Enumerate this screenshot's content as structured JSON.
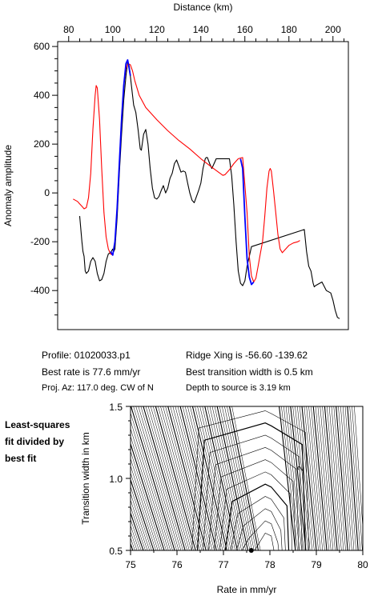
{
  "chart_data": [
    {
      "type": "line",
      "xlabel": "Distance (km)",
      "ylabel": "Anomaly amplitude",
      "xlim": [
        75,
        207
      ],
      "ylim": [
        -560,
        620
      ],
      "x_ticks": [
        80,
        100,
        120,
        140,
        160,
        180,
        200
      ],
      "y_ticks": [
        600,
        400,
        200,
        0,
        -200,
        -400
      ],
      "grid": false,
      "series": [
        {
          "color": "#000000",
          "points": [
            [
              85,
              -95
            ],
            [
              86,
              -200
            ],
            [
              86.5,
              -240
            ],
            [
              87,
              -260
            ],
            [
              87.5,
              -320
            ],
            [
              88,
              -330
            ],
            [
              89,
              -320
            ],
            [
              90,
              -280
            ],
            [
              91,
              -265
            ],
            [
              92,
              -280
            ],
            [
              93,
              -330
            ],
            [
              94,
              -360
            ],
            [
              95,
              -355
            ],
            [
              96,
              -330
            ],
            [
              97,
              -280
            ],
            [
              98,
              -250
            ],
            [
              99,
              -245
            ],
            [
              100,
              -230
            ],
            [
              100.5,
              -240
            ],
            [
              101,
              -230
            ],
            [
              102,
              -100
            ],
            [
              103,
              80
            ],
            [
              104,
              240
            ],
            [
              105,
              380
            ],
            [
              106,
              480
            ],
            [
              106.8,
              535
            ],
            [
              107.5,
              520
            ],
            [
              108.5,
              440
            ],
            [
              109.5,
              360
            ],
            [
              110.5,
              330
            ],
            [
              111.5,
              260
            ],
            [
              112.5,
              180
            ],
            [
              113,
              175
            ],
            [
              114,
              240
            ],
            [
              115,
              260
            ],
            [
              116,
              200
            ],
            [
              117,
              100
            ],
            [
              118,
              20
            ],
            [
              119,
              -20
            ],
            [
              120,
              -25
            ],
            [
              121,
              -15
            ],
            [
              122,
              10
            ],
            [
              123,
              30
            ],
            [
              124,
              0
            ],
            [
              125,
              20
            ],
            [
              126,
              60
            ],
            [
              127,
              80
            ],
            [
              128,
              120
            ],
            [
              129,
              135
            ],
            [
              130,
              110
            ],
            [
              131,
              85
            ],
            [
              132,
              90
            ],
            [
              133,
              85
            ],
            [
              134,
              40
            ],
            [
              135,
              0
            ],
            [
              136,
              -30
            ],
            [
              137,
              -40
            ],
            [
              138,
              -15
            ],
            [
              139,
              10
            ],
            [
              140,
              40
            ],
            [
              141,
              100
            ],
            [
              142,
              140
            ],
            [
              142.5,
              145
            ],
            [
              143,
              145
            ],
            [
              144,
              120
            ],
            [
              145,
              100
            ],
            [
              146,
              120
            ],
            [
              147,
              140
            ],
            [
              153,
              140
            ],
            [
              154,
              70
            ],
            [
              155,
              -50
            ],
            [
              156,
              -200
            ],
            [
              157,
              -320
            ],
            [
              158,
              -370
            ],
            [
              159,
              -380
            ],
            [
              160,
              -360
            ],
            [
              161,
              -300
            ],
            [
              162,
              -260
            ],
            [
              163,
              -220
            ],
            [
              187,
              -150
            ],
            [
              188,
              -240
            ],
            [
              189,
              -300
            ],
            [
              190,
              -320
            ],
            [
              191,
              -370
            ],
            [
              191.5,
              -385
            ],
            [
              192,
              -380
            ],
            [
              195,
              -365
            ],
            [
              197,
              -400
            ],
            [
              199,
              -410
            ],
            [
              200,
              -440
            ],
            [
              201,
              -480
            ],
            [
              202,
              -510
            ],
            [
              203,
              -515
            ]
          ]
        },
        {
          "color": "#ff0000",
          "points": [
            [
              82,
              -25
            ],
            [
              84,
              -35
            ],
            [
              85,
              -45
            ],
            [
              86,
              -55
            ],
            [
              87,
              -65
            ],
            [
              88,
              -60
            ],
            [
              89,
              -20
            ],
            [
              90,
              80
            ],
            [
              91,
              260
            ],
            [
              92,
              400
            ],
            [
              92.5,
              440
            ],
            [
              93,
              430
            ],
            [
              94,
              300
            ],
            [
              95,
              100
            ],
            [
              96,
              -80
            ],
            [
              97,
              -180
            ],
            [
              98,
              -230
            ],
            [
              99,
              -250
            ],
            [
              100,
              -255
            ],
            [
              101,
              -200
            ],
            [
              102,
              -60
            ],
            [
              103,
              120
            ],
            [
              104,
              310
            ],
            [
              105,
              440
            ],
            [
              106,
              510
            ],
            [
              107,
              530
            ],
            [
              108,
              525
            ],
            [
              109,
              500
            ],
            [
              110,
              460
            ],
            [
              112,
              400
            ],
            [
              115,
              350
            ],
            [
              120,
              300
            ],
            [
              125,
              255
            ],
            [
              130,
              215
            ],
            [
              135,
              180
            ],
            [
              140,
              140
            ],
            [
              145,
              105
            ],
            [
              148,
              85
            ],
            [
              150,
              72
            ],
            [
              151,
              75
            ],
            [
              153,
              95
            ],
            [
              155,
              120
            ],
            [
              157,
              140
            ],
            [
              159,
              145
            ],
            [
              161,
              -80
            ],
            [
              162,
              -260
            ],
            [
              163,
              -340
            ],
            [
              164,
              -365
            ],
            [
              165,
              -350
            ],
            [
              166,
              -300
            ],
            [
              167,
              -250
            ],
            [
              168,
              -200
            ],
            [
              169,
              -100
            ],
            [
              170,
              20
            ],
            [
              171,
              90
            ],
            [
              171.5,
              100
            ],
            [
              172,
              90
            ],
            [
              173,
              10
            ],
            [
              174,
              -80
            ],
            [
              175,
              -170
            ],
            [
              176,
              -230
            ],
            [
              177,
              -245
            ],
            [
              178,
              -235
            ],
            [
              180,
              -215
            ],
            [
              182,
              -205
            ],
            [
              184,
              -200
            ],
            [
              185,
              -195
            ]
          ]
        },
        {
          "color": "#0000ff",
          "points": [
            [
              99,
              -240
            ],
            [
              100,
              -255
            ],
            [
              101,
              -200
            ],
            [
              102,
              -60
            ],
            [
              103,
              120
            ],
            [
              104,
              300
            ],
            [
              105,
              440
            ],
            [
              106,
              530
            ],
            [
              106.8,
              545
            ],
            [
              107.3,
              520
            ],
            [
              108,
              480
            ]
          ]
        },
        {
          "color": "#0000ff",
          "points": [
            [
              158,
              140
            ],
            [
              159,
              100
            ],
            [
              160,
              -100
            ],
            [
              161,
              -270
            ],
            [
              162,
              -345
            ],
            [
              163,
              -375
            ],
            [
              164,
              -365
            ]
          ]
        }
      ]
    },
    {
      "type": "contour",
      "xlabel": "Rate in mm/yr",
      "ylabel": "Transition width in km",
      "xlim": [
        75,
        80
      ],
      "ylim": [
        0.5,
        1.5
      ],
      "x_ticks": [
        75,
        76,
        77,
        78,
        79,
        80
      ],
      "y_ticks": [
        0.5,
        1.0,
        1.5
      ],
      "contour_label": "2",
      "best_fit_point": [
        77.6,
        0.5
      ],
      "grid": false
    }
  ],
  "text": {
    "profile": "Profile: 01020033.p1",
    "ridge": "Ridge Xing is -56.60 -139.62",
    "best_rate": "Best rate is 77.6 mm/yr",
    "best_width": "Best transition width is 0.5 km",
    "proj_az": "Proj. Az: 117.0 deg. CW of N",
    "depth": "Depth to source is   3.19 km",
    "side_1": "Least-squares",
    "side_2": "fit divided by",
    "side_3": "best fit"
  }
}
